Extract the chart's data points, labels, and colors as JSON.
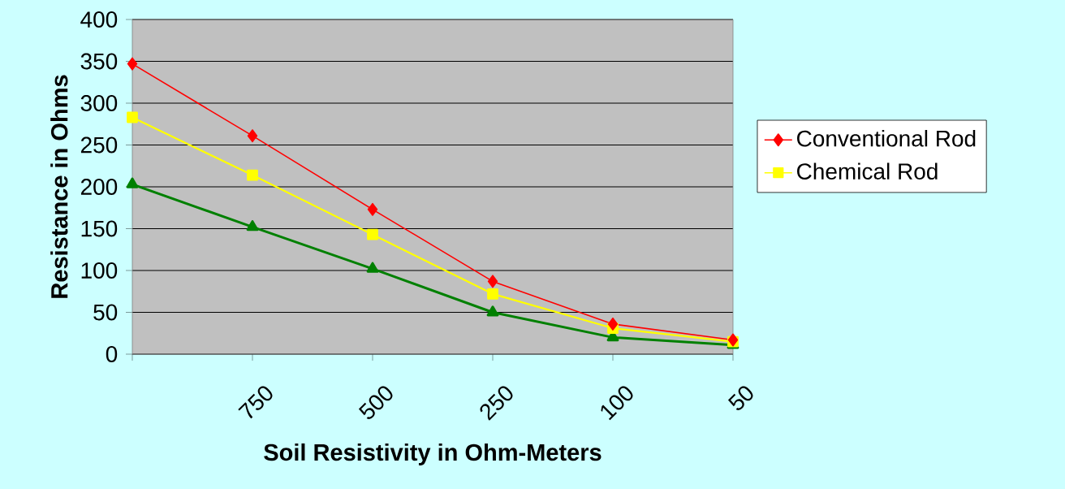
{
  "chart_data": {
    "type": "line",
    "xlabel": "Soil Resistivity in Ohm-Meters",
    "ylabel": "Resistance in Ohms",
    "categories": [
      null,
      "750",
      "500",
      "250",
      "100",
      "50"
    ],
    "ylim": [
      0,
      400
    ],
    "yticks": [
      0,
      50,
      100,
      150,
      200,
      250,
      300,
      350,
      400
    ],
    "grid": "y",
    "legend": "right",
    "series": [
      {
        "name": "Conventional Rod",
        "color": "#ff0000",
        "marker": "diamond",
        "values": [
          347,
          261,
          173,
          87,
          36,
          17
        ]
      },
      {
        "name": "Chemical Rod",
        "color": "#ffff00",
        "marker": "square",
        "values": [
          283,
          214,
          143,
          72,
          31,
          15
        ]
      },
      {
        "color": "#008000",
        "marker": "triangle",
        "values": [
          203,
          152,
          102,
          50,
          20,
          11
        ]
      }
    ]
  }
}
